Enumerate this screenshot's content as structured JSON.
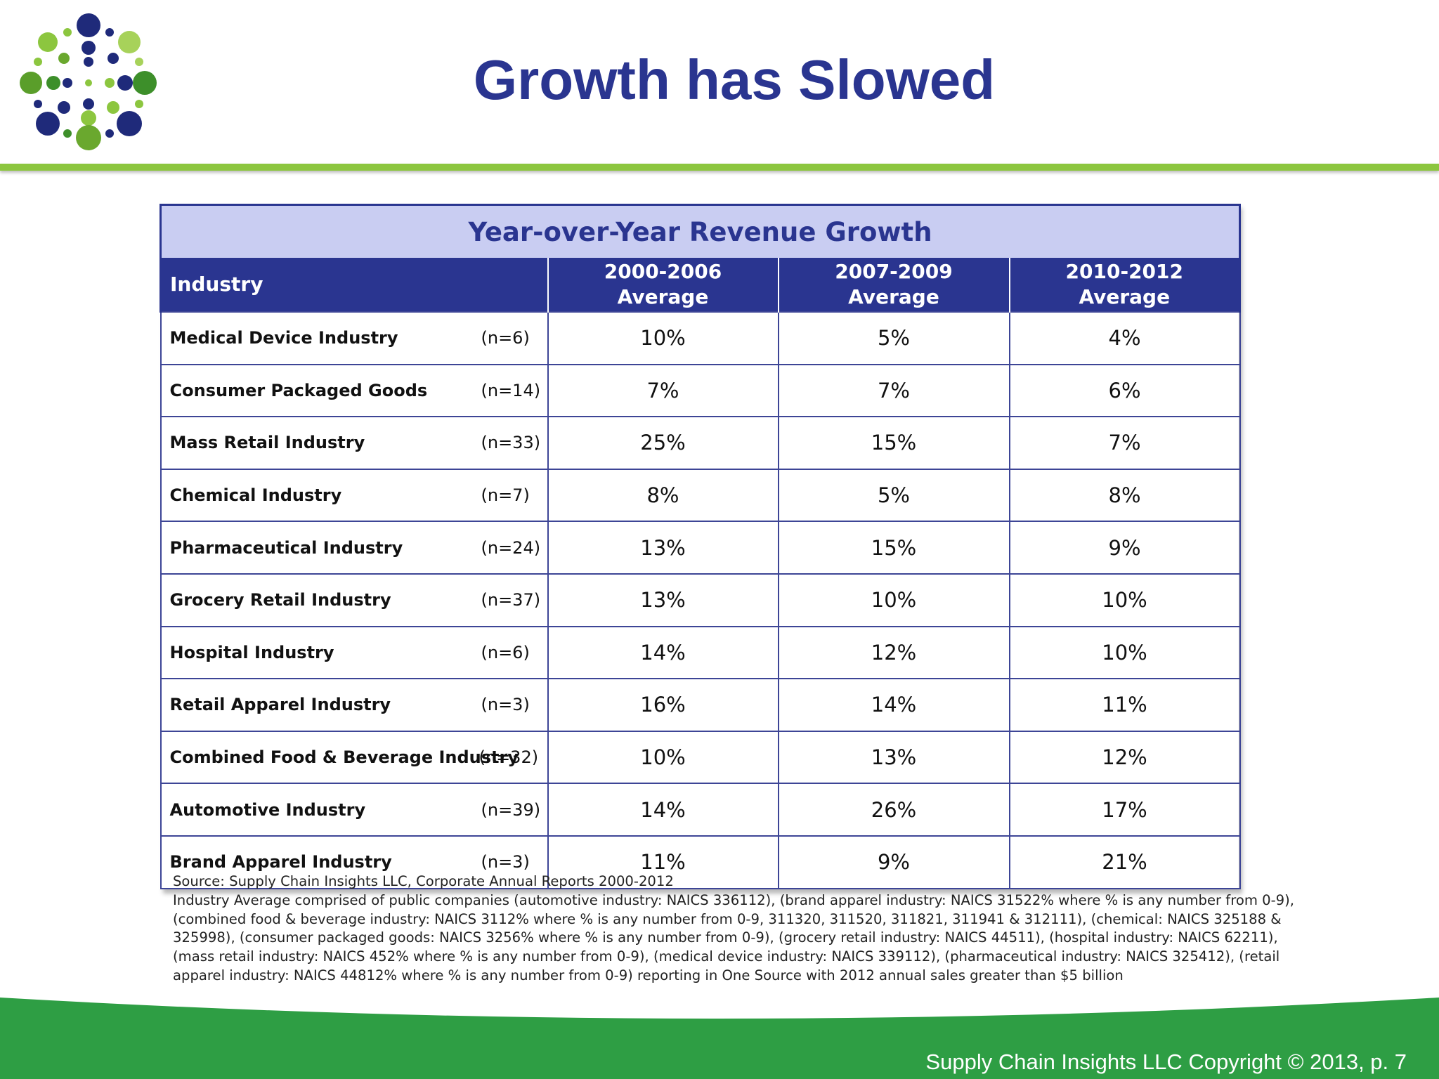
{
  "slide": {
    "title": "Growth has Slowed",
    "copyright": "Supply Chain Insights LLC Copyright © 2013, p. 7",
    "colors": {
      "title": "#2a3590",
      "accent_green": "#8cc63f",
      "footer_green": "#2e9e44",
      "table_header": "#2a3590",
      "table_caption_bg": "#c9cdf2"
    }
  },
  "table": {
    "caption": "Year-over-Year Revenue Growth",
    "headers": {
      "industry": "Industry",
      "periods": [
        {
          "line1": "2000-2006",
          "line2": "Average"
        },
        {
          "line1": "2007-2009",
          "line2": "Average"
        },
        {
          "line1": "2010-2012",
          "line2": "Average"
        }
      ]
    },
    "rows": [
      {
        "industry": "Medical Device Industry",
        "n": "(n=6)",
        "values": [
          "10%",
          "5%",
          "4%"
        ]
      },
      {
        "industry": "Consumer Packaged Goods",
        "n": "(n=14)",
        "values": [
          "7%",
          "7%",
          "6%"
        ]
      },
      {
        "industry": "Mass Retail Industry",
        "n": "(n=33)",
        "values": [
          "25%",
          "15%",
          "7%"
        ]
      },
      {
        "industry": "Chemical Industry",
        "n": "(n=7)",
        "values": [
          "8%",
          "5%",
          "8%"
        ]
      },
      {
        "industry": "Pharmaceutical Industry",
        "n": "(n=24)",
        "values": [
          "13%",
          "15%",
          "9%"
        ]
      },
      {
        "industry": "Grocery Retail Industry",
        "n": "(n=37)",
        "values": [
          "13%",
          "10%",
          "10%"
        ]
      },
      {
        "industry": "Hospital Industry",
        "n": "(n=6)",
        "values": [
          "14%",
          "12%",
          "10%"
        ]
      },
      {
        "industry": "Retail Apparel Industry",
        "n": "(n=3)",
        "values": [
          "16%",
          "14%",
          "11%"
        ]
      },
      {
        "industry": "Combined Food & Beverage Industry",
        "n": "(n=32)",
        "values": [
          "10%",
          "13%",
          "12%"
        ]
      },
      {
        "industry": "Automotive Industry",
        "n": "(n=39)",
        "values": [
          "14%",
          "26%",
          "17%"
        ]
      },
      {
        "industry": "Brand Apparel Industry",
        "n": "(n=3)",
        "values": [
          "11%",
          "9%",
          "21%"
        ]
      }
    ]
  },
  "source": {
    "line1": "Source: Supply Chain Insights LLC, Corporate Annual Reports 2000-2012",
    "line2": "Industry Average comprised of public companies (automotive industry: NAICS 336112), (brand apparel industry: NAICS 31522% where % is any number from 0-9), (combined food & beverage industry: NAICS 3112% where % is any number from 0-9, 311320, 311520, 311821, 311941 & 312111), (chemical: NAICS 325188 & 325998), (consumer packaged goods: NAICS 3256% where % is any number from 0-9), (grocery retail industry: NAICS 44511), (hospital industry: NAICS 62211), (mass retail industry: NAICS 452% where % is any number from 0-9), (medical device industry: NAICS 339112), (pharmaceutical industry: NAICS 325412), (retail apparel industry: NAICS 44812% where % is any number from 0-9) reporting in One Source with 2012 annual sales greater than $5 billion"
  }
}
